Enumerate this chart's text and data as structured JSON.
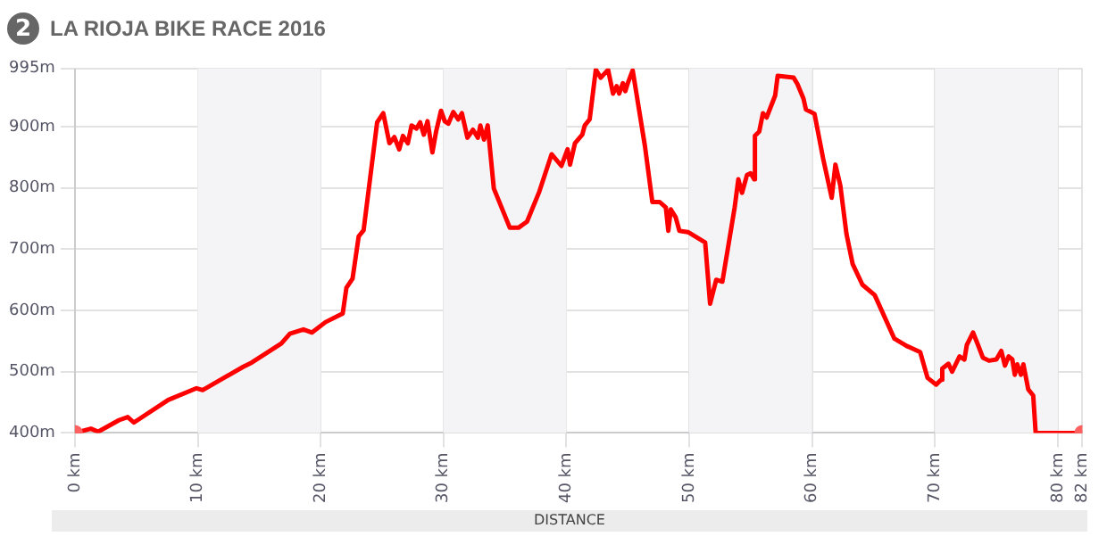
{
  "chart_data": {
    "type": "line",
    "title": "LA RIOJA BIKE RACE 2016",
    "annotations": [
      "2"
    ],
    "xlabel": "DISTANCE",
    "xlim": [
      0,
      82
    ],
    "ylim": [
      400,
      995
    ],
    "xticks": [
      {
        "value": 0,
        "label": "0 km"
      },
      {
        "value": 10,
        "label": "10 km"
      },
      {
        "value": 20,
        "label": "20 km"
      },
      {
        "value": 30,
        "label": "30 km"
      },
      {
        "value": 40,
        "label": "40 km"
      },
      {
        "value": 50,
        "label": "50 km"
      },
      {
        "value": 60,
        "label": "60 km"
      },
      {
        "value": 70,
        "label": "70 km"
      },
      {
        "value": 80,
        "label": "80 km"
      },
      {
        "value": 82,
        "label": "82 km"
      }
    ],
    "yticks": [
      {
        "value": 400,
        "label": "400m"
      },
      {
        "value": 500,
        "label": "500m"
      },
      {
        "value": 600,
        "label": "600m"
      },
      {
        "value": 700,
        "label": "700m"
      },
      {
        "value": 800,
        "label": "800m"
      },
      {
        "value": 900,
        "label": "900m"
      },
      {
        "value": 995,
        "label": "995m"
      }
    ],
    "grid": true,
    "legend": false,
    "bands": [
      {
        "axis": "x",
        "from": 10,
        "to": 20,
        "color": "#f4f4f6"
      },
      {
        "axis": "x",
        "from": 30,
        "to": 40,
        "color": "#f4f4f6"
      },
      {
        "axis": "x",
        "from": 50,
        "to": 60,
        "color": "#f4f4f6"
      },
      {
        "axis": "x",
        "from": 70,
        "to": 80,
        "color": "#f4f4f6"
      }
    ],
    "series": [
      {
        "color": "#ff0000",
        "marker": "none",
        "line_style": "solid",
        "x": [
          0,
          1.3,
          1.9,
          3.6,
          4.3,
          4.8,
          7.6,
          9.9,
          10.4,
          13.7,
          14.4,
          16.8,
          17.5,
          18.6,
          19.3,
          20.4,
          21.8,
          22.1,
          22.6,
          23.1,
          23.5,
          24.6,
          25.1,
          25.6,
          26,
          26.4,
          26.7,
          27.1,
          27.4,
          27.8,
          28.1,
          28.4,
          28.7,
          29.1,
          29.4,
          29.8,
          30.1,
          30.4,
          30.8,
          31.2,
          31.5,
          31.95,
          32.4,
          32.8,
          33,
          33.3,
          33.6,
          34.1,
          35.4,
          36.1,
          36.8,
          37.8,
          38.8,
          39.6,
          40.1,
          40.3,
          40.7,
          41.3,
          41.5,
          41.9,
          42.4,
          42.8,
          43.4,
          43.8,
          44.1,
          44.3,
          44.6,
          44.8,
          45,
          45.4,
          46.4,
          47,
          47.6,
          48.1,
          48.3,
          48.5,
          48.9,
          49.2,
          49.9,
          51.3,
          51.7,
          52.2,
          52.7,
          53.7,
          54,
          54.3,
          54.7,
          55,
          55.3,
          55.35,
          55.7,
          56,
          56.3,
          57,
          57.2,
          58.5,
          58.8,
          59.3,
          59.5,
          60.2,
          60.9,
          61.6,
          61.9,
          62.3,
          62.8,
          63.3,
          64.1,
          65.1,
          66.7,
          67.7,
          68.8,
          69.4,
          70.1,
          70.5,
          70.6,
          71.1,
          71.4,
          72,
          72.4,
          72.6,
          73.1,
          73.5,
          73.9,
          74.4,
          75,
          75.4,
          75.7,
          76,
          76.3,
          76.5,
          76.7,
          77,
          77.2,
          77.6,
          78,
          78.2,
          82
        ],
        "values": [
          400,
          407,
          402,
          421,
          426,
          417,
          454,
          473,
          470,
          508,
          515,
          546,
          562,
          569,
          564,
          581,
          595,
          637,
          652,
          721,
          731,
          907,
          922,
          873,
          883,
          863,
          885,
          873,
          902,
          897,
          907,
          887,
          909,
          858,
          892,
          926,
          909,
          905,
          924,
          912,
          922,
          882,
          895,
          882,
          902,
          879,
          902,
          799,
          735,
          735,
          745,
          794,
          855,
          836,
          863,
          838,
          873,
          887,
          902,
          912,
          993,
          980,
          993,
          954,
          966,
          954,
          971,
          958,
          971,
          992,
          868,
          777,
          777,
          768,
          730,
          765,
          752,
          730,
          728,
          711,
          611,
          650,
          647,
          768,
          814,
          792,
          821,
          824,
          814,
          885,
          892,
          922,
          915,
          951,
          983,
          980,
          970,
          946,
          928,
          921,
          848,
          784,
          838,
          804,
          725,
          676,
          642,
          625,
          554,
          542,
          532,
          490,
          479,
          487,
          505,
          513,
          500,
          525,
          520,
          544,
          564,
          544,
          523,
          518,
          520,
          534,
          510,
          525,
          520,
          495,
          512,
          495,
          512,
          471,
          461,
          400,
          400
        ]
      },
      {
        "type": "scatter",
        "color": "#ff6060",
        "marker": "circle",
        "x": [
          0,
          82
        ],
        "values": [
          400,
          400
        ]
      }
    ]
  }
}
